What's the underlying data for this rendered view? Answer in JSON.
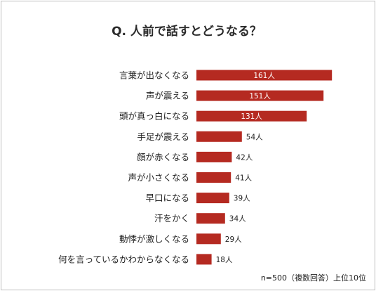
{
  "chart_data": {
    "type": "bar",
    "orientation": "horizontal",
    "title": "Q. 人前で話すとどうなる？",
    "categories": [
      "言葉が出なくなる",
      "声が震える",
      "頭が真っ白になる",
      "手足が震える",
      "顔が赤くなる",
      "声が小さくなる",
      "早口になる",
      "汗をかく",
      "動悸が激しくなる",
      "何を言っているかわからなくなる"
    ],
    "values": [
      161,
      151,
      131,
      54,
      42,
      41,
      39,
      34,
      29,
      18
    ],
    "value_labels": [
      "161人",
      "151人",
      "131人",
      "54人",
      "42人",
      "41人",
      "39人",
      "34人",
      "29人",
      "18人"
    ],
    "bar_color": "#b52a21",
    "xlim": [
      0,
      170
    ],
    "grid": false,
    "legend": "none"
  },
  "footnote": "n=500（複数回答）上位10位"
}
